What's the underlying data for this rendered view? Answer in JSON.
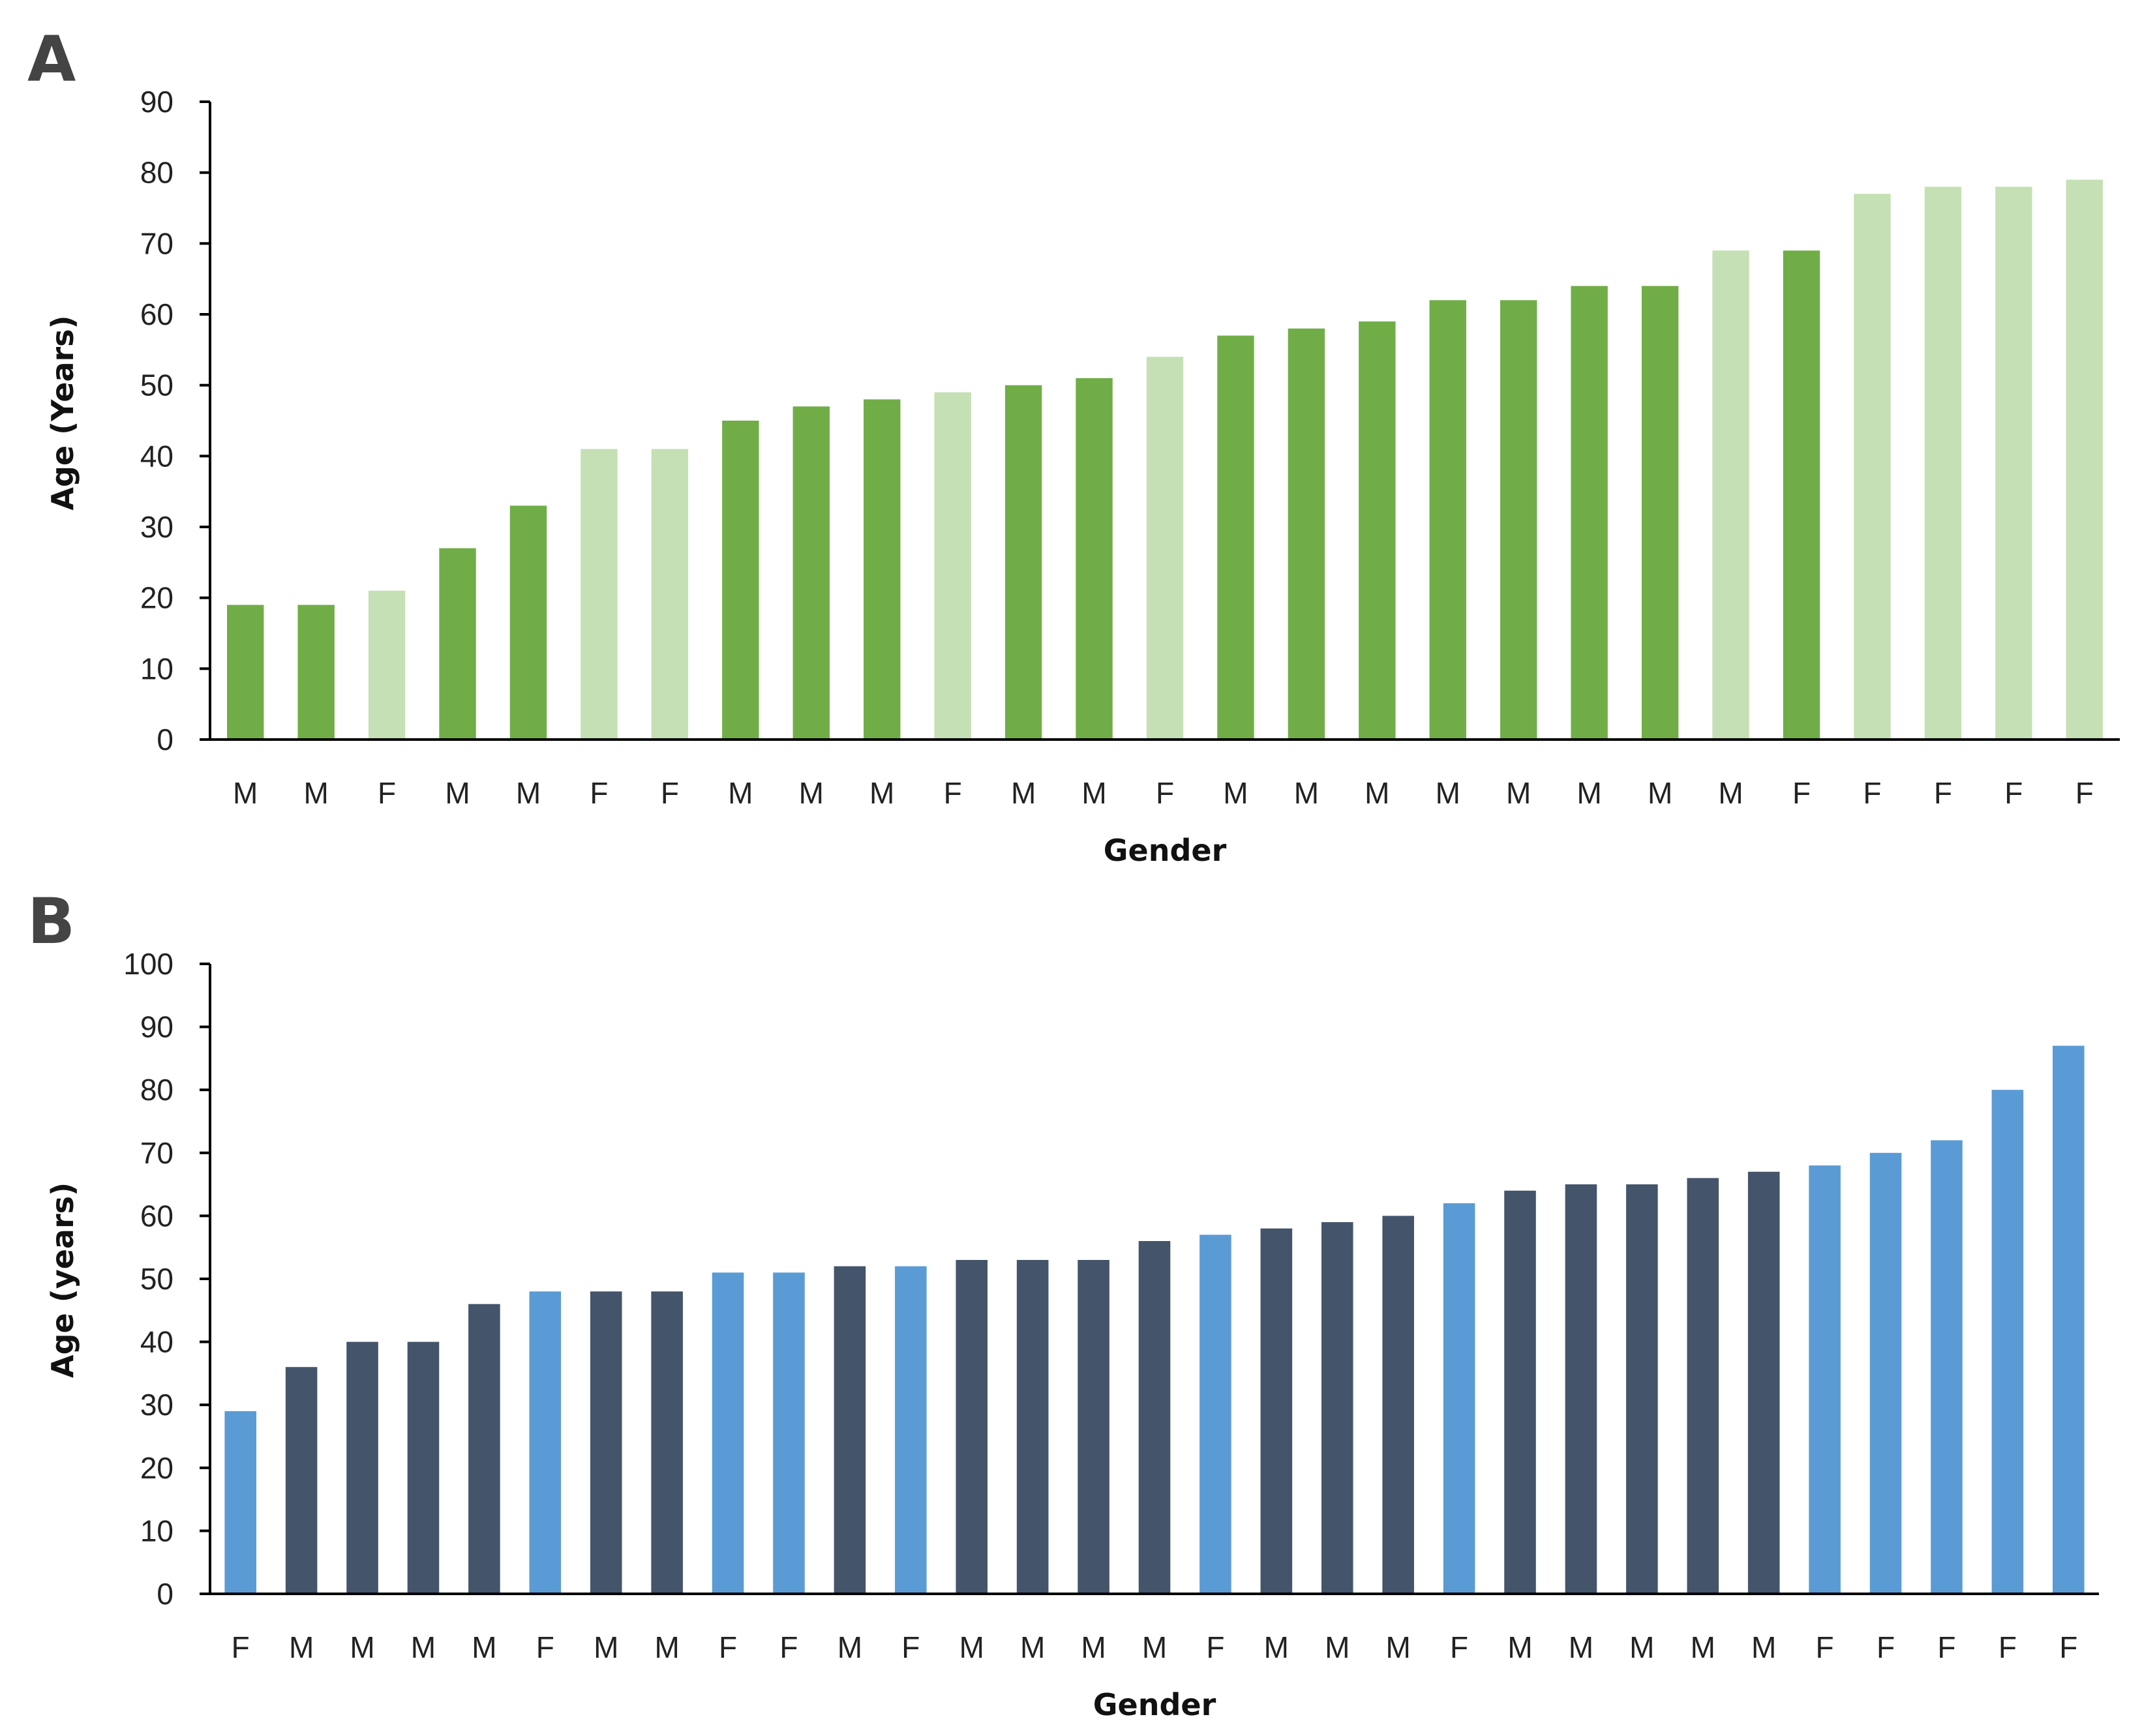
{
  "chart_data": [
    {
      "panel": "A",
      "type": "bar",
      "xlabel": "Gender",
      "ylabel": "Age (Years)",
      "ylim": [
        0,
        90
      ],
      "yticks": [
        0,
        10,
        20,
        30,
        40,
        50,
        60,
        70,
        80,
        90
      ],
      "categories": [
        "M",
        "M",
        "F",
        "M",
        "M",
        "F",
        "F",
        "M",
        "M",
        "M",
        "F",
        "M",
        "M",
        "F",
        "M",
        "M",
        "M",
        "M",
        "M",
        "M",
        "M",
        "M",
        "F",
        "F",
        "F",
        "F",
        "F"
      ],
      "values": [
        19,
        19,
        21,
        27,
        33,
        41,
        41,
        45,
        47,
        48,
        49,
        50,
        51,
        54,
        57,
        58,
        59,
        62,
        62,
        64,
        64,
        69,
        69,
        77,
        78,
        78,
        79
      ],
      "bar_shade": [
        "dark",
        "dark",
        "light",
        "dark",
        "dark",
        "light",
        "light",
        "dark",
        "dark",
        "dark",
        "light",
        "dark",
        "dark",
        "light",
        "dark",
        "dark",
        "dark",
        "dark",
        "dark",
        "dark",
        "dark",
        "light",
        "dark",
        "light",
        "light",
        "light",
        "light"
      ],
      "colors": {
        "dark": "#70AD47",
        "light": "#C5E0B4"
      },
      "grid": false,
      "legend": "none"
    },
    {
      "panel": "B",
      "type": "bar",
      "xlabel": "Gender",
      "ylabel": "Age (years)",
      "ylim": [
        0,
        100
      ],
      "yticks": [
        0,
        10,
        20,
        30,
        40,
        50,
        60,
        70,
        80,
        90,
        100
      ],
      "categories": [
        "F",
        "M",
        "M",
        "M",
        "M",
        "F",
        "M",
        "M",
        "F",
        "F",
        "M",
        "F",
        "M",
        "M",
        "M",
        "M",
        "F",
        "M",
        "M",
        "M",
        "F",
        "M",
        "M",
        "M",
        "M",
        "M",
        "F",
        "F",
        "F",
        "F",
        "F"
      ],
      "values": [
        29,
        36,
        40,
        40,
        46,
        48,
        48,
        48,
        51,
        51,
        52,
        52,
        53,
        53,
        53,
        56,
        57,
        58,
        59,
        60,
        62,
        64,
        65,
        65,
        66,
        67,
        68,
        70,
        72,
        80,
        87
      ],
      "colors": {
        "F": "#5B9BD5",
        "M": "#44546A"
      },
      "grid": false,
      "legend": "none"
    }
  ]
}
